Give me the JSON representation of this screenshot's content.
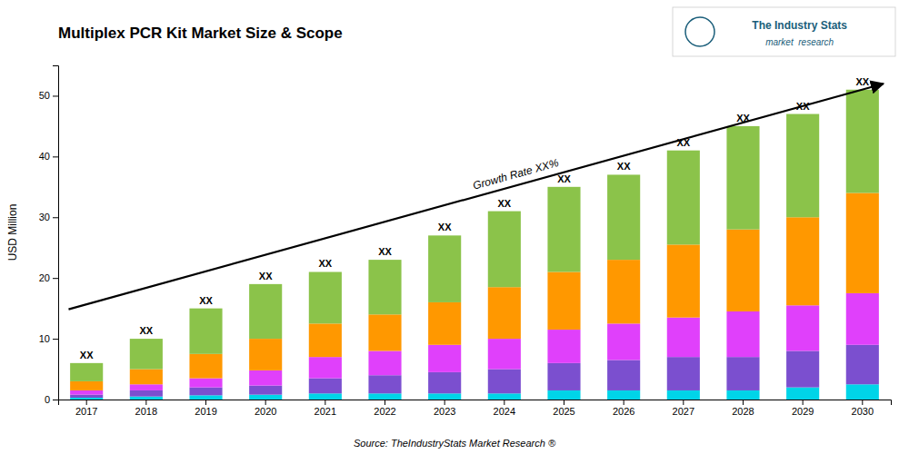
{
  "chart_data": {
    "type": "bar",
    "stacked": true,
    "grid": false,
    "title": "Multiplex PCR Kit Market Size & Scope",
    "ylabel": "USD Million",
    "source": "Source: TheIndustryStats Market Research ®",
    "categories": [
      "2017",
      "2018",
      "2019",
      "2020",
      "2021",
      "2022",
      "2023",
      "2024",
      "2025",
      "2026",
      "2027",
      "2028",
      "2029",
      "2030"
    ],
    "series": [
      {
        "color": "#00d4e8",
        "values": [
          0.3,
          0.5,
          0.7,
          0.8,
          1.0,
          1.0,
          1.0,
          1.0,
          1.5,
          1.5,
          1.5,
          1.5,
          2.0,
          2.5
        ]
      },
      {
        "color": "#7b4fcf",
        "values": [
          0.5,
          1.0,
          1.3,
          1.5,
          2.5,
          3.0,
          3.5,
          4.0,
          4.5,
          5.0,
          5.5,
          5.5,
          6.0,
          6.5
        ]
      },
      {
        "color": "#e040fb",
        "values": [
          0.7,
          1.0,
          1.5,
          2.5,
          3.5,
          4.0,
          4.5,
          5.0,
          5.5,
          6.0,
          6.5,
          7.5,
          7.5,
          8.5
        ]
      },
      {
        "color": "#ff9800",
        "values": [
          1.5,
          2.5,
          4.0,
          5.2,
          5.5,
          6.0,
          7.0,
          8.5,
          9.5,
          10.5,
          12.0,
          13.5,
          14.5,
          16.5
        ]
      },
      {
        "color": "#8bc34a",
        "values": [
          3.0,
          5.0,
          7.5,
          9.0,
          8.5,
          9.0,
          11.0,
          12.5,
          14.0,
          14.0,
          15.5,
          17.0,
          17.0,
          17.0
        ]
      }
    ],
    "bar_labels": [
      "XX",
      "XX",
      "XX",
      "XX",
      "XX",
      "XX",
      "XX",
      "XX",
      "XX",
      "XX",
      "XX",
      "XX",
      "XX",
      "XX"
    ],
    "annotations": [
      "Growth Rate XX%"
    ],
    "logo": [
      "The Industry Stats",
      "market  research"
    ],
    "ylim": [
      0,
      55
    ],
    "yticks": [
      0,
      10,
      20,
      30,
      40,
      50
    ]
  }
}
